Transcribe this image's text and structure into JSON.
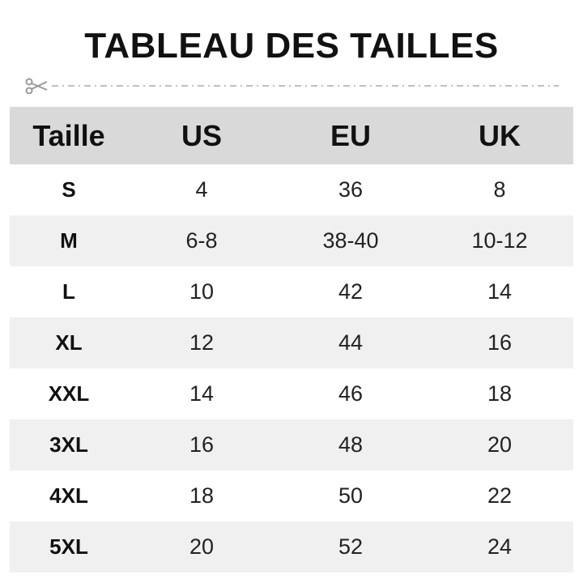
{
  "title": "TABLEAU DES TAILLES",
  "icons": {
    "cut": "scissors-icon"
  },
  "colors": {
    "header_bg": "#d9d9d9",
    "alt_row_bg": "#f0f0f0",
    "text": "#111111"
  },
  "table": {
    "headers": [
      "Taille",
      "US",
      "EU",
      "UK"
    ],
    "rows": [
      [
        "S",
        "4",
        "36",
        "8"
      ],
      [
        "M",
        "6-8",
        "38-40",
        "10-12"
      ],
      [
        "L",
        "10",
        "42",
        "14"
      ],
      [
        "XL",
        "12",
        "44",
        "16"
      ],
      [
        "XXL",
        "14",
        "46",
        "18"
      ],
      [
        "3XL",
        "16",
        "48",
        "20"
      ],
      [
        "4XL",
        "18",
        "50",
        "22"
      ],
      [
        "5XL",
        "20",
        "52",
        "24"
      ]
    ]
  }
}
